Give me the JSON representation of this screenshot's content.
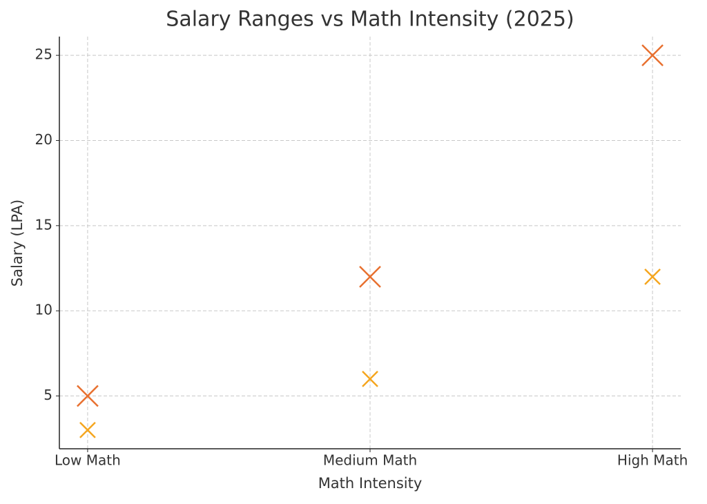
{
  "chart_data": {
    "type": "scatter",
    "title": "Salary Ranges vs Math Intensity (2025)",
    "x_label": "Math Intensity",
    "y_label": "Salary (LPA)",
    "categories": [
      "Low Math",
      "Medium Math",
      "High Math"
    ],
    "series": [
      {
        "color": "#e8702f",
        "marker": "x",
        "values": [
          5,
          12,
          25
        ]
      },
      {
        "color": "#f5a61f",
        "marker": "x",
        "values": [
          3,
          6,
          12
        ]
      }
    ],
    "ylim": [
      1.9,
      26.1
    ],
    "yticks": [
      5,
      10,
      15,
      20,
      25
    ],
    "grid": true
  }
}
